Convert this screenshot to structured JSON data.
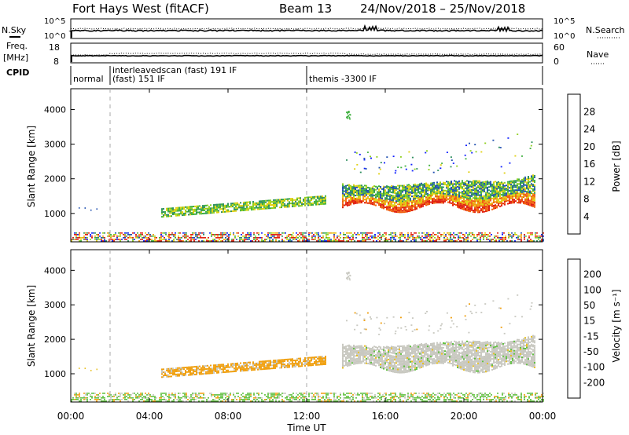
{
  "header": {
    "station": "Fort Hays West (fitACF)",
    "beam": "Beam 13",
    "dates": "24/Nov/2018 – 25/Nov/2018"
  },
  "panel_labels": {
    "nsky": "N.Sky",
    "freq_line1": "Freq.",
    "freq_line2": "[MHz]",
    "cpid": "CPID",
    "nsearch": "N.Search",
    "nave": "Nave"
  },
  "cpid_segments": [
    "normal",
    "interleavedscan (fast) 191 IF",
    "(fast) 151 IF",
    "themis -3300 IF"
  ],
  "colors": {
    "power": [
      "#1020ff",
      "#2050b0",
      "#309060",
      "#40b040",
      "#90d020",
      "#e0d010",
      "#f0a010",
      "#f06010",
      "#e02010"
    ],
    "velocity": [
      "#e01010",
      "#f06010",
      "#f0a010",
      "#e8c020",
      "#c8c8c0",
      "#60c040",
      "#30a030",
      "#2050a0",
      "#1030d0"
    ]
  },
  "chart_data": [
    {
      "type": "line",
      "name": "nsky-nsearch",
      "ylabel": "N.Sky",
      "y2label": "N.Search",
      "yticks": [
        "10^5",
        "10^0"
      ],
      "y2ticks": [
        "10^5",
        "10^0"
      ],
      "xlim": [
        0,
        24
      ]
    },
    {
      "type": "line",
      "name": "freq-nave",
      "ylabel": "Freq. [MHz]",
      "y2label": "Nave",
      "ylim": [
        8,
        18
      ],
      "y2lim": [
        0,
        60
      ],
      "yticks": [
        18,
        8
      ],
      "y2ticks": [
        60,
        0
      ],
      "xlim": [
        0,
        24
      ]
    },
    {
      "type": "heatmap",
      "name": "power",
      "ylabel": "Slant Range [km]",
      "yticks": [
        1000,
        2000,
        3000,
        4000
      ],
      "ylim": [
        180,
        4600
      ],
      "xlim": [
        0,
        24
      ],
      "colorbar": {
        "label": "Power [dB]",
        "ticks": [
          4,
          8,
          12,
          16,
          20,
          24,
          28
        ],
        "range": [
          0,
          32
        ]
      }
    },
    {
      "type": "heatmap",
      "name": "velocity",
      "ylabel": "Slant Range [km]",
      "yticks": [
        1000,
        2000,
        3000,
        4000
      ],
      "ylim": [
        180,
        4600
      ],
      "xlim": [
        0,
        24
      ],
      "xlabel": "Time UT",
      "xticks": [
        "00:00",
        "04:00",
        "08:00",
        "12:00",
        "16:00",
        "20:00",
        "00:00"
      ],
      "colorbar": {
        "label": "Velocity [m s⁻¹]",
        "ticks": [
          200,
          100,
          50,
          15,
          -15,
          -50,
          -100,
          -200
        ]
      }
    }
  ]
}
